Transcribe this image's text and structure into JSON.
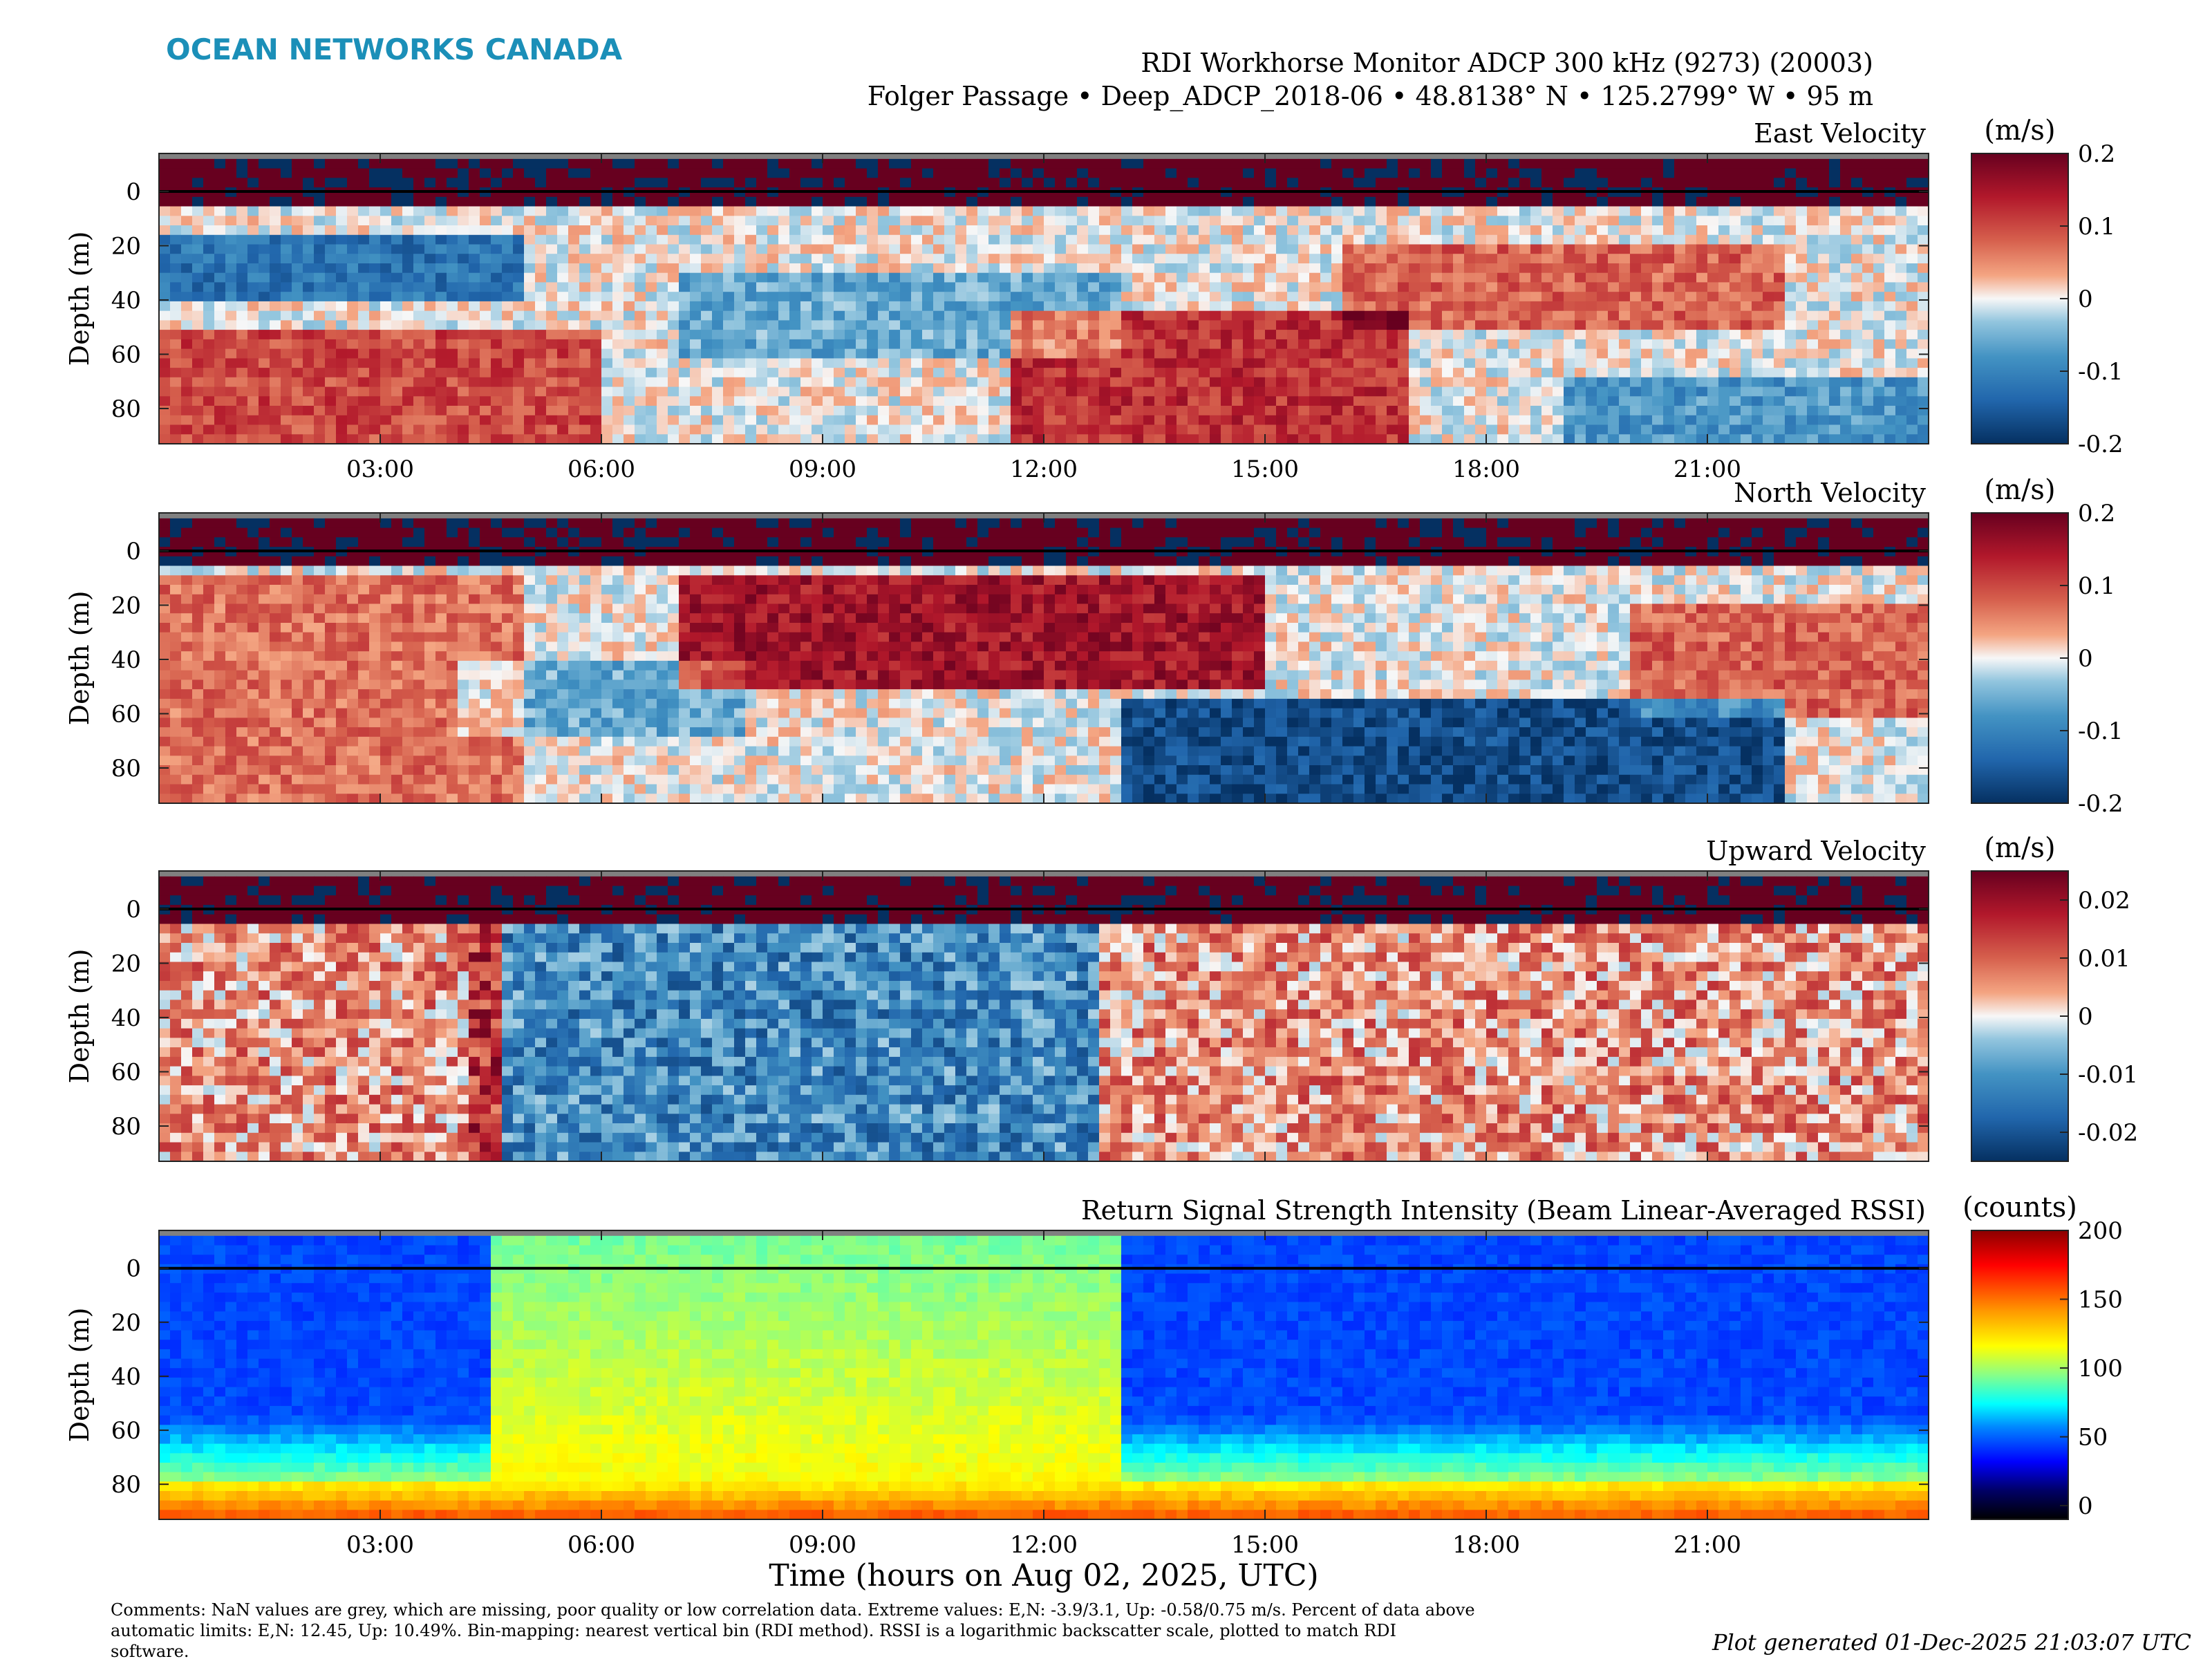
{
  "header": {
    "logo": "OCEAN NETWORKS CANADA",
    "title_line1": "RDI Workhorse Monitor ADCP 300 kHz (9273) (20003)",
    "title_line2": "Folger Passage • Deep_ADCP_2018-06 • 48.8138° N • 125.2799° W • 95 m",
    "logo_color": "#1b8fb8"
  },
  "footer": {
    "xlabel": "Time (hours on Aug 02, 2025, UTC)",
    "comments_line1": "Comments: NaN values are grey, which are missing, poor quality or low correlation data. Extreme values: E,N: -3.9/3.1, Up: -0.58/0.75 m/s. Percent of data above",
    "comments_line2": "automatic limits: E,N: 12.45, Up: 10.49%. Bin-mapping: nearest vertical bin (RDI method). RSSI is a logarithmic backscatter scale, plotted to match RDI",
    "comments_line3": "software.",
    "generated": "Plot generated 01-Dec-2025 21:03:07 UTC"
  },
  "chart_data": [
    {
      "type": "heatmap",
      "title": "East Velocity",
      "ylabel": "Depth (m)",
      "units": "(m/s)",
      "x_ticks": [
        "03:00",
        "06:00",
        "09:00",
        "12:00",
        "15:00",
        "18:00",
        "21:00"
      ],
      "x_tick_hours": [
        3,
        6,
        9,
        12,
        15,
        18,
        21
      ],
      "xlim_hours": [
        0,
        24
      ],
      "y_ticks": [
        0,
        20,
        40,
        60,
        80
      ],
      "ylim": [
        -14,
        93
      ],
      "y_reversed": true,
      "clim": [
        -0.2,
        0.2
      ],
      "cbar_ticks": [
        0.2,
        0.1,
        0,
        -0.1,
        -0.2
      ],
      "cbar_tick_labels": [
        "0.2",
        "0.1",
        "0",
        "-0.1",
        "-0.2"
      ],
      "colormap": "diverging-blue-white-red",
      "nan_color": "#808080"
    },
    {
      "type": "heatmap",
      "title": "North Velocity",
      "ylabel": "Depth (m)",
      "units": "(m/s)",
      "x_tick_hours": [
        3,
        6,
        9,
        12,
        15,
        18,
        21
      ],
      "xlim_hours": [
        0,
        24
      ],
      "y_ticks": [
        0,
        20,
        40,
        60,
        80
      ],
      "ylim": [
        -14,
        93
      ],
      "y_reversed": true,
      "clim": [
        -0.2,
        0.2
      ],
      "cbar_ticks": [
        0.2,
        0.1,
        0,
        -0.1,
        -0.2
      ],
      "cbar_tick_labels": [
        "0.2",
        "0.1",
        "0",
        "-0.1",
        "-0.2"
      ],
      "colormap": "diverging-blue-white-red",
      "nan_color": "#808080"
    },
    {
      "type": "heatmap",
      "title": "Upward Velocity",
      "ylabel": "Depth (m)",
      "units": "(m/s)",
      "x_tick_hours": [
        3,
        6,
        9,
        12,
        15,
        18,
        21
      ],
      "xlim_hours": [
        0,
        24
      ],
      "y_ticks": [
        0,
        20,
        40,
        60,
        80
      ],
      "ylim": [
        -14,
        93
      ],
      "y_reversed": true,
      "clim": [
        -0.025,
        0.025
      ],
      "cbar_ticks": [
        0.02,
        0.01,
        0,
        -0.01,
        -0.02
      ],
      "cbar_tick_labels": [
        "0.02",
        "0.01",
        "0",
        "-0.01",
        "-0.02"
      ],
      "colormap": "diverging-blue-white-red",
      "nan_color": "#808080"
    },
    {
      "type": "heatmap",
      "title": "Return Signal Strength Intensity (Beam Linear-Averaged RSSI)",
      "ylabel": "Depth (m)",
      "units": "(counts)",
      "x_ticks": [
        "03:00",
        "06:00",
        "09:00",
        "12:00",
        "15:00",
        "18:00",
        "21:00"
      ],
      "x_tick_hours": [
        3,
        6,
        9,
        12,
        15,
        18,
        21
      ],
      "xlim_hours": [
        0,
        24
      ],
      "y_ticks": [
        0,
        20,
        40,
        60,
        80
      ],
      "ylim": [
        -14,
        93
      ],
      "y_reversed": true,
      "clim": [
        -10,
        200
      ],
      "cbar_ticks": [
        200,
        150,
        100,
        50,
        0
      ],
      "cbar_tick_labels": [
        "200",
        "150",
        "100",
        "50",
        "0"
      ],
      "colormap": "jet-with-black",
      "nan_color": "#808080"
    }
  ]
}
